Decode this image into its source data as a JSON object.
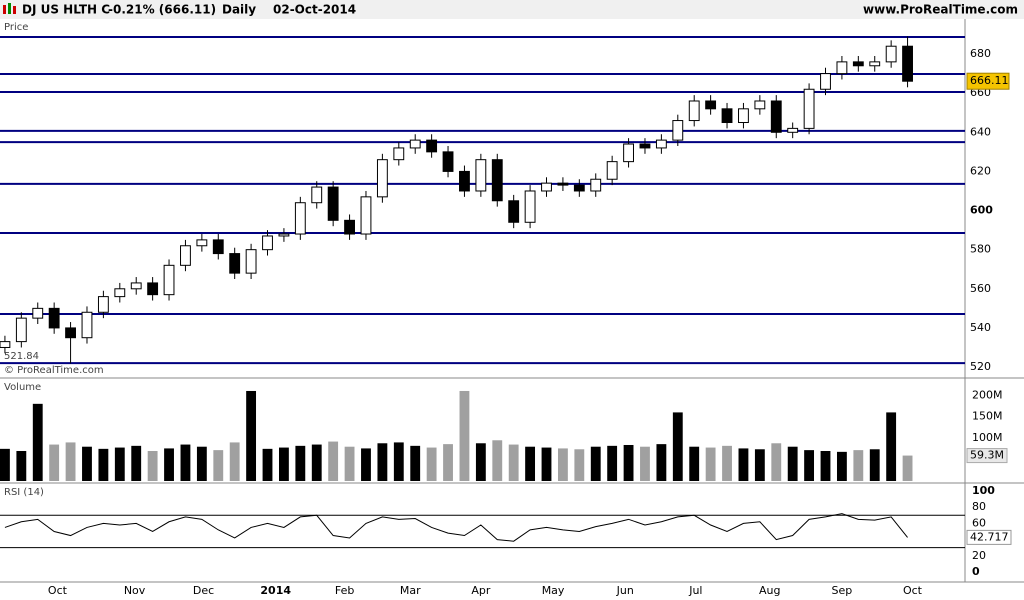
{
  "header": {
    "title": "DJ US HLTH C",
    "change": "-0.21% (666.11)",
    "period": "Daily",
    "date": "02-Oct-2014",
    "site": "www.ProRealTime.com",
    "copyright": "© ProRealTime.com"
  },
  "chart_data": [
    {
      "type": "candlestick",
      "panel_label": "Price",
      "open": [
        530,
        533,
        545,
        550,
        540,
        535,
        548,
        556,
        560,
        563,
        557,
        572,
        582,
        585,
        578,
        568,
        580,
        587,
        588,
        604,
        612,
        595,
        588,
        607,
        626,
        632,
        636,
        630,
        620,
        610,
        626,
        605,
        594,
        610,
        614,
        613,
        610,
        616,
        625,
        634,
        632,
        636,
        646,
        656,
        652,
        645,
        652,
        656,
        640,
        642,
        662,
        670,
        676,
        674,
        676,
        684
      ],
      "high": [
        536,
        548,
        553,
        553,
        543,
        551,
        559,
        563,
        566,
        566,
        575,
        585,
        588,
        588,
        581,
        583,
        590,
        591,
        607,
        615,
        615,
        598,
        610,
        629,
        635,
        639,
        639,
        633,
        623,
        629,
        629,
        608,
        613,
        617,
        617,
        616,
        619,
        628,
        637,
        637,
        639,
        649,
        659,
        659,
        655,
        655,
        659,
        659,
        645,
        665,
        673,
        679,
        679,
        679,
        687,
        689
      ],
      "low": [
        527,
        530,
        542,
        537,
        521.84,
        532,
        545,
        553,
        557,
        554,
        554,
        569,
        579,
        575,
        565,
        565,
        577,
        584,
        585,
        601,
        592,
        585,
        585,
        604,
        623,
        629,
        627,
        617,
        607,
        607,
        602,
        591,
        591,
        607,
        610,
        607,
        607,
        613,
        622,
        629,
        629,
        633,
        643,
        649,
        642,
        642,
        649,
        637,
        637,
        639,
        659,
        667,
        671,
        671,
        673,
        663
      ],
      "close": [
        533,
        545,
        550,
        540,
        535,
        548,
        556,
        560,
        563,
        557,
        572,
        582,
        585,
        578,
        568,
        580,
        587,
        588,
        604,
        612,
        595,
        588,
        607,
        626,
        632,
        636,
        630,
        620,
        610,
        626,
        605,
        594,
        610,
        614,
        613,
        610,
        616,
        625,
        634,
        632,
        636,
        646,
        656,
        652,
        645,
        652,
        656,
        640,
        642,
        662,
        670,
        676,
        674,
        676,
        684,
        666.11
      ],
      "up_color": "#ffffff",
      "down_color": "#000000",
      "line_color": "#000000",
      "levels": [
        688.7,
        669.8,
        660.6,
        640.7,
        635,
        613.6,
        588.5,
        547.1,
        522
      ],
      "level_color": "#000080",
      "ylim": [
        514.4,
        697.4
      ],
      "yticks": [
        520,
        540,
        560,
        580,
        600,
        620,
        640,
        660,
        680
      ],
      "bold_tick": 600,
      "low_index": 4,
      "last_index": 55
    },
    {
      "type": "bar",
      "panel_label": "Volume",
      "values": [
        75,
        70,
        180,
        85,
        90,
        80,
        75,
        78,
        82,
        70,
        76,
        85,
        80,
        72,
        90,
        210,
        75,
        78,
        82,
        85,
        92,
        80,
        76,
        88,
        90,
        82,
        78,
        86,
        210,
        88,
        95,
        85,
        80,
        78,
        76,
        74,
        80,
        82,
        84,
        80,
        86,
        160,
        80,
        78,
        82,
        76,
        74,
        88,
        80,
        72,
        70,
        68,
        72,
        74,
        160,
        59.3
      ],
      "current_label": "59.3M",
      "up_color": "#000000",
      "down_color": "#a0a0a0",
      "ylim": [
        0,
        235.6
      ],
      "yticks": [
        {
          "value": 100,
          "label": "100M"
        },
        {
          "value": 150,
          "label": "150M"
        },
        {
          "value": 200,
          "label": "200M"
        }
      ]
    },
    {
      "type": "line",
      "panel_label": "RSI (14)",
      "values": [
        55,
        62,
        65,
        50,
        45,
        55,
        60,
        58,
        60,
        50,
        62,
        68,
        65,
        52,
        42,
        55,
        60,
        55,
        68,
        70,
        45,
        42,
        60,
        68,
        65,
        66,
        55,
        48,
        45,
        58,
        40,
        38,
        52,
        55,
        52,
        50,
        56,
        60,
        65,
        58,
        62,
        68,
        70,
        58,
        50,
        60,
        62,
        40,
        45,
        65,
        68,
        72,
        65,
        64,
        68,
        42.717
      ],
      "color": "#000000",
      "overbought_color": "#8a2be2",
      "levels": [
        70,
        30
      ],
      "ylim": [
        -9.9,
        107.4
      ],
      "yticks": [
        0,
        20,
        60,
        80,
        100
      ],
      "xticks": [
        {
          "value": 3.2,
          "label": "Oct"
        },
        {
          "value": 7.9,
          "label": "Nov"
        },
        {
          "value": 12.1,
          "label": "Dec"
        },
        {
          "value": 16.5,
          "label": "2014"
        },
        {
          "value": 20.7,
          "label": "Feb"
        },
        {
          "value": 24.7,
          "label": "Mar"
        },
        {
          "value": 29.0,
          "label": "Apr"
        },
        {
          "value": 33.4,
          "label": "May"
        },
        {
          "value": 37.8,
          "label": "Jun"
        },
        {
          "value": 42.1,
          "label": "Jul"
        },
        {
          "value": 46.6,
          "label": "Aug"
        },
        {
          "value": 51.0,
          "label": "Sep"
        },
        {
          "value": 55.3,
          "label": "Oct"
        }
      ],
      "bold_xtick": 3,
      "xlim": [
        -0.3,
        58.5
      ]
    }
  ]
}
